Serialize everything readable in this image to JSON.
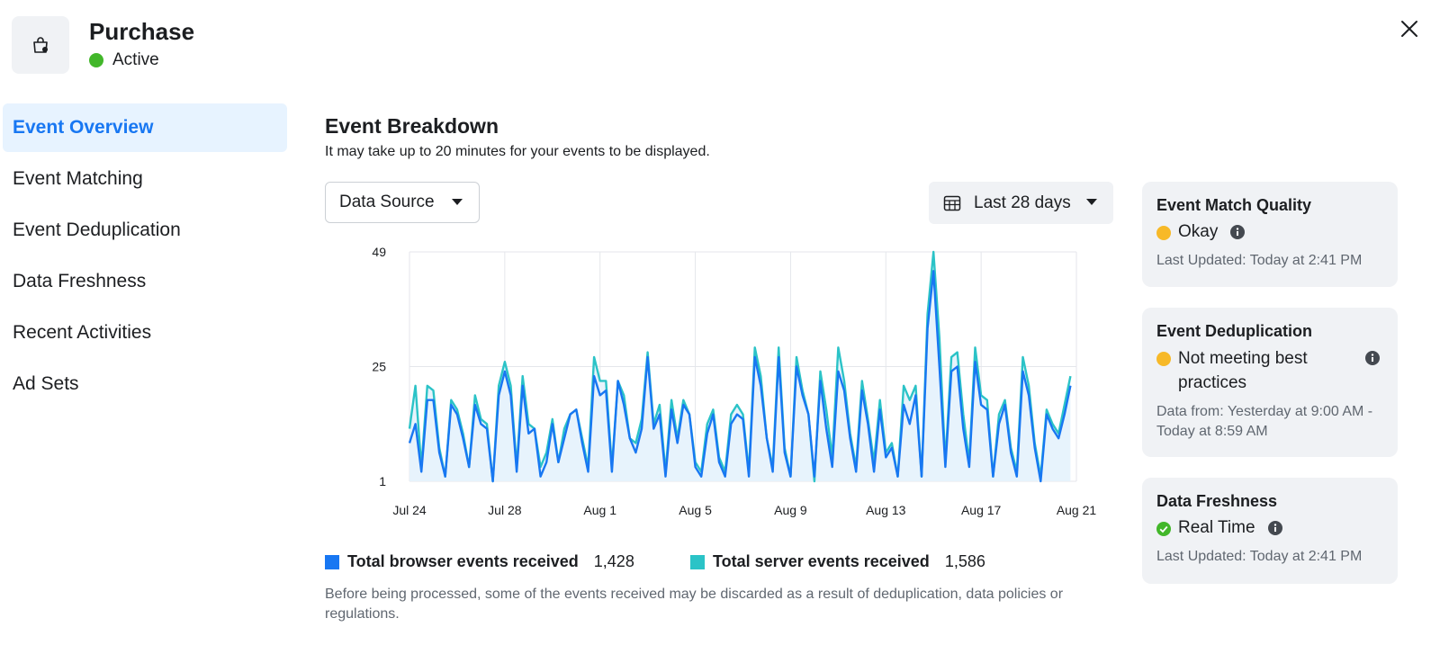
{
  "header": {
    "title": "Purchase",
    "status": "Active"
  },
  "sidebar": {
    "items": [
      {
        "label": "Event Overview",
        "active": true
      },
      {
        "label": "Event Matching"
      },
      {
        "label": "Event Deduplication"
      },
      {
        "label": "Data Freshness"
      },
      {
        "label": "Recent Activities"
      },
      {
        "label": "Ad Sets"
      }
    ]
  },
  "main": {
    "title": "Event Breakdown",
    "subtitle": "It may take up to 20 minutes for your events to be displayed.",
    "data_source_label": "Data Source",
    "date_range_label": "Last 28 days",
    "footnote": "Before being processed, some of the events received may be discarded as a result of deduplication, data policies or regulations."
  },
  "legend": {
    "browser": {
      "label": "Total browser events received",
      "value": "1,428"
    },
    "server": {
      "label": "Total server events received",
      "value": "1,586"
    }
  },
  "colors": {
    "browser": "#1877f2",
    "server": "#2bc3c7",
    "area": "#e7f3fc",
    "accent": "#1877f2",
    "active": "#42b72a",
    "warning": "#f7b928"
  },
  "cards": {
    "match_quality": {
      "title": "Event Match Quality",
      "status": "Okay",
      "meta": "Last Updated: Today at 2:41 PM"
    },
    "deduplication": {
      "title": "Event Deduplication",
      "status": "Not meeting best practices",
      "meta": "Data from: Yesterday at 9:00 AM - Today at 8:59 AM"
    },
    "freshness": {
      "title": "Data Freshness",
      "status": "Real Time",
      "meta": "Last Updated: Today at 2:41 PM"
    }
  },
  "chart_data": {
    "type": "line",
    "title": "",
    "xlabel": "",
    "ylabel": "",
    "y_ticks": [
      1,
      25,
      49
    ],
    "ylim": [
      1,
      49
    ],
    "x_ticks": [
      "Jul 24",
      "Jul 28",
      "Aug 1",
      "Aug 5",
      "Aug 9",
      "Aug 13",
      "Aug 17",
      "Aug 21"
    ],
    "x_range": [
      0,
      28
    ],
    "grid": true,
    "series": [
      {
        "name": "Total browser events received",
        "x": [
          0,
          0.25,
          0.5,
          0.75,
          1,
          1.25,
          1.5,
          1.75,
          2,
          2.25,
          2.5,
          2.75,
          3,
          3.25,
          3.5,
          3.75,
          4,
          4.25,
          4.5,
          4.75,
          5,
          5.25,
          5.5,
          5.75,
          6,
          6.25,
          6.5,
          6.75,
          7,
          7.25,
          7.5,
          7.75,
          8,
          8.25,
          8.5,
          8.75,
          9,
          9.25,
          9.5,
          9.75,
          10,
          10.25,
          10.5,
          10.75,
          11,
          11.25,
          11.5,
          11.75,
          12,
          12.25,
          12.5,
          12.75,
          13,
          13.25,
          13.5,
          13.75,
          14,
          14.25,
          14.5,
          14.75,
          15,
          15.25,
          15.5,
          15.75,
          16,
          16.25,
          16.5,
          16.75,
          17,
          17.25,
          17.5,
          17.75,
          18,
          18.25,
          18.5,
          18.75,
          19,
          19.25,
          19.5,
          19.75,
          20,
          20.25,
          20.5,
          20.75,
          21,
          21.25,
          21.5,
          21.75,
          22,
          22.25,
          22.5,
          22.75,
          23,
          23.25,
          23.5,
          23.75,
          24,
          24.25,
          24.5,
          24.75,
          25,
          25.25,
          25.5,
          25.75,
          26,
          26.25,
          26.5,
          26.75,
          27,
          27.25,
          27.5,
          27.75
        ],
        "values": [
          9,
          13,
          3,
          18,
          18,
          7,
          2,
          17,
          15,
          10,
          4,
          17,
          13,
          12,
          1,
          19,
          24,
          19,
          3,
          21,
          11,
          12,
          2,
          5,
          13,
          5,
          10,
          15,
          16,
          9,
          3,
          23,
          19,
          20,
          3,
          22,
          17,
          10,
          7,
          12,
          27,
          12,
          15,
          2,
          16,
          9,
          17,
          15,
          4,
          2,
          11,
          15,
          5,
          2,
          13,
          15,
          14,
          2,
          27,
          21,
          10,
          3,
          27,
          7,
          2,
          25,
          19,
          15,
          2,
          22,
          12,
          4,
          24,
          20,
          10,
          3,
          20,
          13,
          3,
          16,
          6,
          8,
          2,
          17,
          13,
          19,
          2,
          33,
          45,
          25,
          4,
          24,
          25,
          12,
          4,
          26,
          17,
          16,
          2,
          13,
          17,
          7,
          2,
          24,
          19,
          8,
          1,
          15,
          12,
          10,
          15,
          21
        ],
        "color": "#1877f2"
      },
      {
        "name": "Total server events received",
        "x": [
          0,
          0.25,
          0.5,
          0.75,
          1,
          1.25,
          1.5,
          1.75,
          2,
          2.25,
          2.5,
          2.75,
          3,
          3.25,
          3.5,
          3.75,
          4,
          4.25,
          4.5,
          4.75,
          5,
          5.25,
          5.5,
          5.75,
          6,
          6.25,
          6.5,
          6.75,
          7,
          7.25,
          7.5,
          7.75,
          8,
          8.25,
          8.5,
          8.75,
          9,
          9.25,
          9.5,
          9.75,
          10,
          10.25,
          10.5,
          10.75,
          11,
          11.25,
          11.5,
          11.75,
          12,
          12.25,
          12.5,
          12.75,
          13,
          13.25,
          13.5,
          13.75,
          14,
          14.25,
          14.5,
          14.75,
          15,
          15.25,
          15.5,
          15.75,
          16,
          16.25,
          16.5,
          16.75,
          17,
          17.25,
          17.5,
          17.75,
          18,
          18.25,
          18.5,
          18.75,
          19,
          19.25,
          19.5,
          19.75,
          20,
          20.25,
          20.5,
          20.75,
          21,
          21.25,
          21.5,
          21.75,
          22,
          22.25,
          22.5,
          22.75,
          23,
          23.25,
          23.5,
          23.75,
          24,
          24.25,
          24.5,
          24.75,
          25,
          25.25,
          25.5,
          25.75,
          26,
          26.25,
          26.5,
          26.75,
          27,
          27.25,
          27.5,
          27.75
        ],
        "values": [
          12,
          21,
          4,
          21,
          20,
          8,
          2,
          18,
          16,
          11,
          4,
          19,
          14,
          13,
          1,
          21,
          26,
          21,
          4,
          23,
          13,
          12,
          4,
          7,
          14,
          5,
          12,
          15,
          16,
          10,
          4,
          27,
          22,
          22,
          4,
          22,
          19,
          10,
          9,
          14,
          28,
          13,
          17,
          3,
          18,
          10,
          18,
          15,
          5,
          3,
          13,
          16,
          6,
          3,
          15,
          17,
          15,
          3,
          29,
          23,
          10,
          4,
          29,
          8,
          2,
          27,
          20,
          15,
          1,
          24,
          16,
          6,
          29,
          22,
          11,
          4,
          22,
          14,
          5,
          18,
          7,
          9,
          2,
          21,
          18,
          21,
          2,
          36,
          49,
          31,
          5,
          27,
          28,
          15,
          5,
          29,
          19,
          18,
          2,
          15,
          18,
          8,
          3,
          27,
          21,
          9,
          2,
          16,
          13,
          11,
          17,
          23
        ],
        "color": "#2bc3c7"
      }
    ]
  }
}
